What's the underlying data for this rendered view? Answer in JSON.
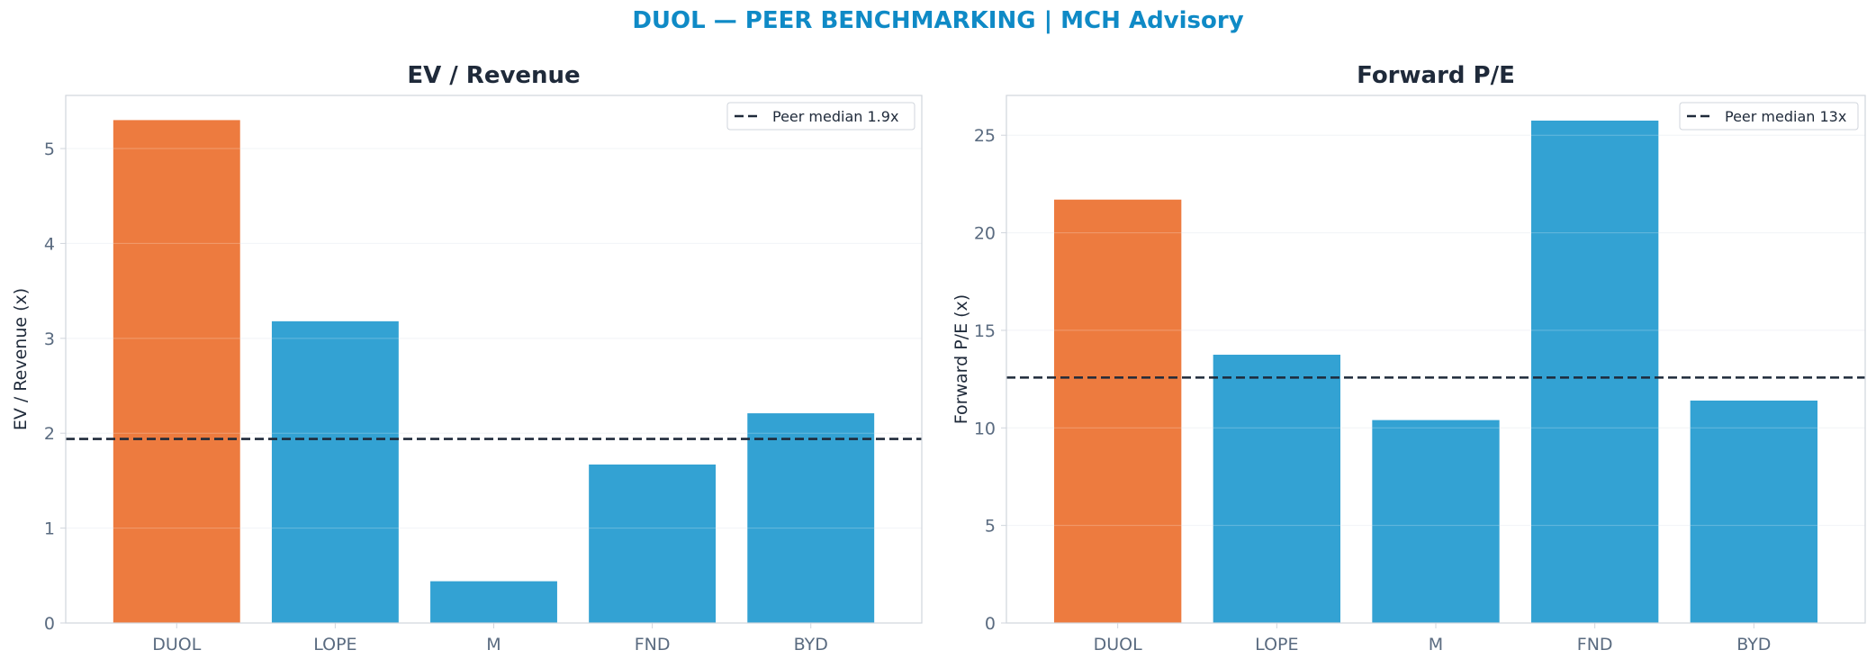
{
  "title": "DUOL — PEER BENCHMARKING | MCH Advisory",
  "colors": {
    "title": "#0f8ac6",
    "highlight": "#ed7b3f",
    "peer": "#33a2d3",
    "median_line": "#1f2a3a",
    "axis_frame": "#d0d5dc",
    "grid": "#eef1f4"
  },
  "chart_data": [
    {
      "type": "bar",
      "title": "EV / Revenue",
      "ylabel": "EV / Revenue (x)",
      "categories": [
        "DUOL",
        "LOPE",
        "M",
        "FND",
        "BYD"
      ],
      "values": [
        5.3,
        3.18,
        0.44,
        1.67,
        2.21
      ],
      "highlight": "DUOL",
      "ylim": [
        0,
        5.56
      ],
      "yticks": [
        0,
        1,
        2,
        3,
        4,
        5
      ],
      "reference_line": {
        "value": 1.94,
        "label": "Peer median 1.9x",
        "style": "dashed"
      },
      "legend": "top-right",
      "grid": true
    },
    {
      "type": "bar",
      "title": "Forward P/E",
      "ylabel": "Forward P/E (x)",
      "categories": [
        "DUOL",
        "LOPE",
        "M",
        "FND",
        "BYD"
      ],
      "values": [
        21.7,
        13.75,
        10.4,
        25.75,
        11.4
      ],
      "highlight": "DUOL",
      "ylim": [
        0,
        27.04
      ],
      "yticks": [
        0,
        5,
        10,
        15,
        20,
        25
      ],
      "reference_line": {
        "value": 12.58,
        "label": "Peer median 13x",
        "style": "dashed"
      },
      "legend": "top-right",
      "grid": true
    }
  ]
}
